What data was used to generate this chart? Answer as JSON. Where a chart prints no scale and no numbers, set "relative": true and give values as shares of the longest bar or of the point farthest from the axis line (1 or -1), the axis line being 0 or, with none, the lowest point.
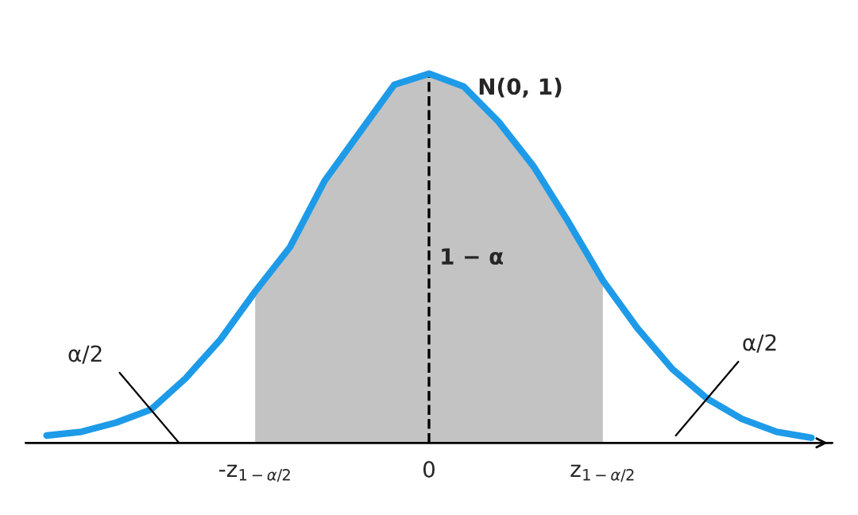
{
  "chart_data": {
    "type": "line",
    "relative": true,
    "categories": [
      null,
      null,
      null,
      null,
      null,
      null,
      "-z$_{1−α/2}$",
      null,
      null,
      null,
      null,
      "0",
      null,
      null,
      null,
      null,
      "z$_{1−α/2}$",
      null,
      null,
      null,
      null,
      null,
      null
    ],
    "series": [
      {
        "type": "area",
        "color": "#c3c3c3",
        "values": [
          null,
          null,
          null,
          null,
          null,
          null,
          0.41,
          0.53,
          0.71,
          0.84,
          0.97,
          1,
          0.965,
          0.87,
          0.75,
          0.6,
          0.44,
          null,
          null,
          null,
          null,
          null,
          null
        ]
      },
      {
        "name": "N(0, 1)",
        "color": "#1e9be8",
        "values": [
          0.02,
          0.03,
          0.055,
          0.09,
          0.175,
          0.28,
          0.41,
          0.53,
          0.71,
          0.84,
          0.97,
          1,
          0.965,
          0.87,
          0.75,
          0.6,
          0.44,
          0.31,
          0.2,
          0.12,
          0.065,
          0.03,
          0.014
        ]
      }
    ],
    "ref_lines": [
      {
        "axis": "x",
        "value": "0",
        "line_style": "dashed",
        "color": "#000000"
      }
    ],
    "annotations": [
      "1 − α",
      "α/2",
      "α/2"
    ],
    "legend": false,
    "grid": false,
    "marker": "none",
    "line_style": "solid"
  }
}
